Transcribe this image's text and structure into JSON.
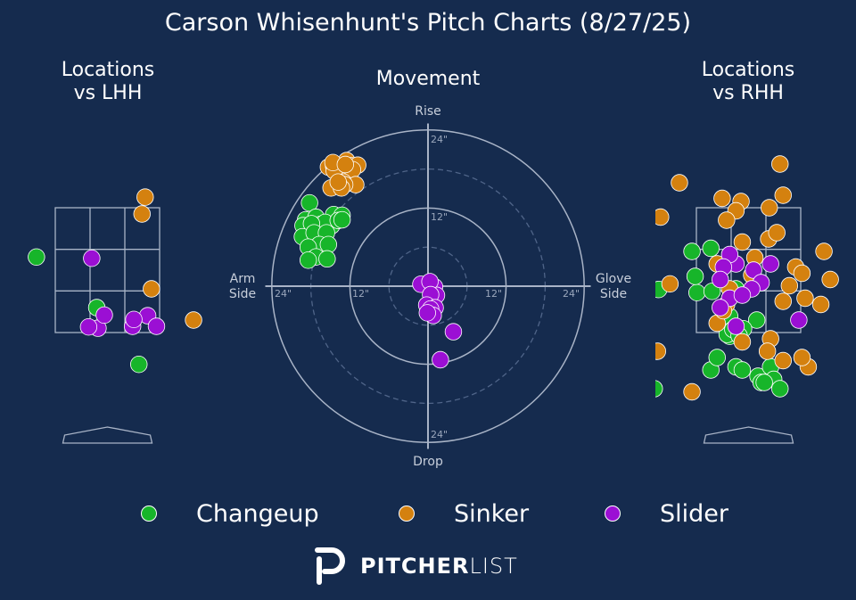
{
  "title": "Carson Whisenhunt's Pitch Charts (8/27/25)",
  "panels": {
    "lhh": "Locations\nvs LHH",
    "movement": "Movement",
    "rhh": "Locations\nvs RHH"
  },
  "movement_labels": {
    "top": "Rise",
    "bottom": "Drop",
    "left_line1": "Arm",
    "left_line2": "Side",
    "right_line1": "Glove",
    "right_line2": "Side",
    "ring_12": "12\"",
    "ring_24": "24\""
  },
  "colors": {
    "background": "#152b4e",
    "Changeup": "#17b52a",
    "Sinker": "#d4810f",
    "Slider": "#9b0fd4",
    "grid": "#a9b4c7"
  },
  "legend": [
    "Changeup",
    "Sinker",
    "Slider"
  ],
  "brand": {
    "bold": "PITCHER",
    "light": "LIST"
  },
  "chart_data": [
    {
      "type": "scatter",
      "panel": "Movement",
      "x_unit": "inches horizontal break (negative = arm side)",
      "y_unit": "inches induced vertical break",
      "xlim": [
        -24,
        24
      ],
      "ylim": [
        -24,
        24
      ],
      "series": [
        {
          "name": "Changeup",
          "points": [
            [
              -18.2,
              12.8
            ],
            [
              -14.5,
              11.0
            ],
            [
              -13.2,
              10.9
            ],
            [
              -18.8,
              10.2
            ],
            [
              -17.2,
              10.6
            ],
            [
              -16.5,
              9.5
            ],
            [
              -19.2,
              9.3
            ],
            [
              -14.8,
              9.3
            ],
            [
              -15.8,
              9.8
            ],
            [
              -17.9,
              9.6
            ],
            [
              -13.8,
              10.1
            ],
            [
              -19.3,
              7.6
            ],
            [
              -17.5,
              8.2
            ],
            [
              -15.6,
              8.2
            ],
            [
              -16.7,
              6.4
            ],
            [
              -15.3,
              6.4
            ],
            [
              -18.4,
              6.0
            ],
            [
              -17.2,
              4.5
            ],
            [
              -15.5,
              4.2
            ],
            [
              -18.4,
              4.0
            ],
            [
              -13.2,
              10.2
            ]
          ]
        },
        {
          "name": "Sinker",
          "points": [
            [
              -15.3,
              18.3
            ],
            [
              -12.5,
              19.3
            ],
            [
              -14.5,
              18.5
            ],
            [
              -13.4,
              18.3
            ],
            [
              -11.8,
              18.5
            ],
            [
              -10.8,
              18.6
            ],
            [
              -12.6,
              17.4
            ],
            [
              -13.8,
              17.3
            ],
            [
              -14.4,
              17.7
            ],
            [
              -11.6,
              17.9
            ],
            [
              -13.0,
              16.0
            ],
            [
              -11.1,
              15.6
            ],
            [
              -12.8,
              15.6
            ],
            [
              -14.9,
              15.1
            ],
            [
              -13.3,
              15.1
            ],
            [
              -13.8,
              16.0
            ],
            [
              -14.6,
              19.0
            ],
            [
              -12.7,
              18.7
            ]
          ]
        },
        {
          "name": "Slider",
          "points": [
            [
              -1.1,
              0.3
            ],
            [
              1.0,
              -0.1
            ],
            [
              1.3,
              -1.4
            ],
            [
              0.3,
              0.7
            ],
            [
              0.4,
              -1.3
            ],
            [
              -0.2,
              -2.9
            ],
            [
              1.1,
              -3.3
            ],
            [
              0.4,
              -3.5
            ],
            [
              0.8,
              -4.5
            ],
            [
              3.9,
              -7.0
            ],
            [
              -0.1,
              -4.1
            ],
            [
              1.9,
              -11.3
            ]
          ]
        }
      ]
    },
    {
      "type": "scatter",
      "panel": "Locations vs LHH",
      "x_unit": "feet from plate center (catcher view)",
      "y_unit": "feet above ground",
      "strike_zone": {
        "x": [
          -0.83,
          0.83
        ],
        "y": [
          1.5,
          3.5
        ]
      },
      "series": [
        {
          "name": "Changeup",
          "points": [
            [
              -1.13,
              2.71
            ],
            [
              -0.17,
              1.9
            ],
            [
              0.5,
              0.99
            ]
          ]
        },
        {
          "name": "Sinker",
          "points": [
            [
              0.6,
              3.67
            ],
            [
              0.55,
              3.4
            ],
            [
              0.7,
              2.2
            ],
            [
              1.37,
              1.7
            ]
          ]
        },
        {
          "name": "Slider",
          "points": [
            [
              -0.25,
              2.69
            ],
            [
              -0.15,
              1.57
            ],
            [
              -0.05,
              1.78
            ],
            [
              -0.3,
              1.59
            ],
            [
              0.4,
              1.6
            ],
            [
              0.64,
              1.77
            ],
            [
              0.78,
              1.6
            ],
            [
              0.42,
              1.71
            ]
          ]
        }
      ]
    },
    {
      "type": "scatter",
      "panel": "Locations vs RHH",
      "x_unit": "feet from plate center (catcher view)",
      "y_unit": "feet above ground",
      "strike_zone": {
        "x": [
          -0.83,
          0.83
        ],
        "y": [
          1.5,
          3.5
        ]
      },
      "series": [
        {
          "name": "Changeup",
          "points": [
            [
              -1.5,
              0.6
            ],
            [
              -1.43,
              2.19
            ],
            [
              -0.82,
              2.14
            ],
            [
              -0.58,
              2.16
            ],
            [
              0.13,
              1.7
            ],
            [
              -0.3,
              1.44
            ],
            [
              -0.08,
              1.56
            ],
            [
              -0.34,
              1.47
            ],
            [
              -0.3,
              1.76
            ],
            [
              -0.2,
              2.2
            ],
            [
              -0.9,
              2.8
            ],
            [
              -0.6,
              2.85
            ],
            [
              -0.85,
              2.4
            ],
            [
              -0.25,
              1.55
            ],
            [
              -0.6,
              0.9
            ],
            [
              -0.5,
              1.1
            ],
            [
              0.15,
              0.8
            ],
            [
              -0.2,
              0.95
            ],
            [
              0.2,
              0.7
            ],
            [
              -0.15,
              1.45
            ],
            [
              0.35,
              0.95
            ],
            [
              0.4,
              0.75
            ],
            [
              0.5,
              0.6
            ],
            [
              0.25,
              0.7
            ],
            [
              -0.1,
              0.9
            ]
          ]
        },
        {
          "name": "Sinker",
          "points": [
            [
              0.5,
              4.2
            ],
            [
              -1.1,
              3.9
            ],
            [
              0.55,
              3.7
            ],
            [
              -0.42,
              3.65
            ],
            [
              -0.12,
              3.6
            ],
            [
              -0.2,
              3.45
            ],
            [
              0.33,
              3.5
            ],
            [
              -0.35,
              3.3
            ],
            [
              -1.4,
              3.35
            ],
            [
              -0.1,
              2.95
            ],
            [
              0.1,
              2.7
            ],
            [
              0.32,
              3.0
            ],
            [
              0.45,
              3.1
            ],
            [
              0.75,
              2.55
            ],
            [
              1.2,
              2.8
            ],
            [
              -1.25,
              2.28
            ],
            [
              -0.5,
              2.6
            ],
            [
              0.85,
              2.45
            ],
            [
              -0.3,
              2.2
            ],
            [
              0.05,
              2.42
            ],
            [
              0.65,
              2.25
            ],
            [
              0.9,
              2.05
            ],
            [
              1.15,
              1.95
            ],
            [
              0.55,
              2.0
            ],
            [
              -0.35,
              1.95
            ],
            [
              -0.1,
              1.35
            ],
            [
              0.35,
              1.4
            ],
            [
              -0.5,
              1.65
            ],
            [
              0.3,
              1.2
            ],
            [
              0.55,
              1.05
            ],
            [
              0.95,
              0.95
            ],
            [
              -1.45,
              1.2
            ],
            [
              -0.9,
              0.55
            ],
            [
              0.85,
              1.1
            ],
            [
              -0.4,
              1.85
            ],
            [
              1.3,
              2.35
            ]
          ]
        },
        {
          "name": "Slider",
          "points": [
            [
              0.08,
              2.5
            ],
            [
              -0.2,
              2.6
            ],
            [
              -0.3,
              2.75
            ],
            [
              -0.4,
              2.55
            ],
            [
              -0.45,
              2.35
            ],
            [
              -0.3,
              2.05
            ],
            [
              -0.45,
              1.9
            ],
            [
              -0.2,
              1.6
            ],
            [
              0.2,
              2.3
            ],
            [
              0.05,
              2.2
            ],
            [
              -0.1,
              2.1
            ],
            [
              0.8,
              1.7
            ],
            [
              0.35,
              2.6
            ]
          ]
        }
      ]
    }
  ]
}
